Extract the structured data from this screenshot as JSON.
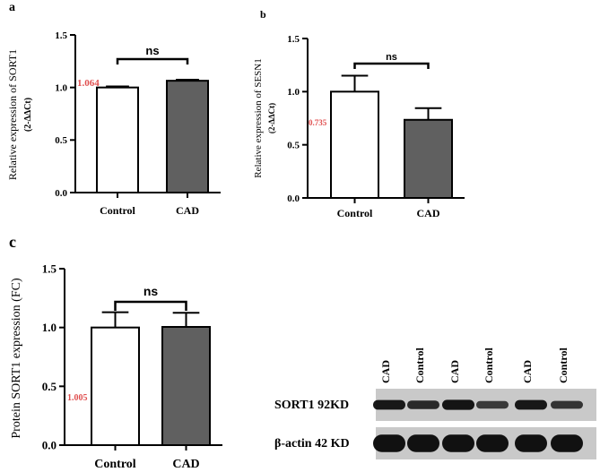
{
  "colors": {
    "control_fill": "#ffffff",
    "cad_fill": "#606060",
    "annotation": "#e05050",
    "axis": "#000000",
    "blot_bg": "#c9c9c9",
    "band": "#111111"
  },
  "chart_data": [
    {
      "panel": "a",
      "type": "bar",
      "categories": [
        "Control",
        "CAD"
      ],
      "values": [
        1.0,
        1.064
      ],
      "errors": [
        0.01,
        0.01
      ],
      "ylabel": "Relative expression of SORT1",
      "ylabel_sub": "(2-ΔΔCt)",
      "ylim": [
        0,
        1.5
      ],
      "yticks": [
        "0.0",
        "0.5",
        "1.0",
        "1.5"
      ],
      "significance": "ns",
      "annotation": "1.064",
      "grid": false
    },
    {
      "panel": "b",
      "type": "bar",
      "categories": [
        "Control",
        "CAD"
      ],
      "values": [
        1.0,
        0.735
      ],
      "errors": [
        0.15,
        0.11
      ],
      "ylabel": "Relative expression of SESN1",
      "ylabel_sub": "(2-ΔΔCt)",
      "ylim": [
        0,
        1.5
      ],
      "yticks": [
        "0.0",
        "0.5",
        "1.0",
        "1.5"
      ],
      "significance": "ns",
      "annotation": "0.735",
      "grid": false
    },
    {
      "panel": "c",
      "type": "bar",
      "categories": [
        "Control",
        "CAD"
      ],
      "values": [
        1.0,
        1.005
      ],
      "errors": [
        0.13,
        0.12
      ],
      "ylabel": "Protein SORT1 expression (FC)",
      "ylim": [
        0,
        1.5
      ],
      "yticks": [
        "0.0",
        "0.5",
        "1.0",
        "1.5"
      ],
      "significance": "ns",
      "annotation": "1.005",
      "grid": false
    }
  ],
  "blot": {
    "lanes": [
      "CAD",
      "Control",
      "CAD",
      "Control",
      "CAD",
      "Control"
    ],
    "rows": [
      {
        "label": "SORT1 92KD",
        "intensity": [
          0.85,
          0.7,
          0.9,
          0.55,
          0.85,
          0.6
        ]
      },
      {
        "label": "β-actin 42 KD",
        "intensity": [
          0.95,
          0.95,
          0.95,
          0.95,
          0.95,
          0.95
        ]
      }
    ]
  }
}
